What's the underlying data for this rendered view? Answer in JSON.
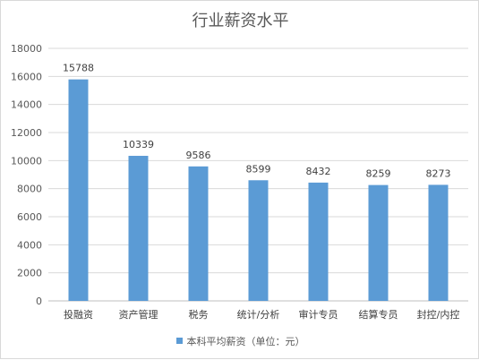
{
  "chart_data": {
    "type": "bar",
    "title": "行业薪资水平",
    "categories": [
      "投融资",
      "资产管理",
      "税务",
      "统计/分析",
      "审计专员",
      "结算专员",
      "封控/内控"
    ],
    "series": [
      {
        "name": "本科平均薪资（单位：元）",
        "values": [
          15788,
          10339,
          9586,
          8599,
          8432,
          8259,
          8273
        ]
      }
    ],
    "ylim": [
      0,
      18000
    ],
    "yticks": [
      0,
      2000,
      4000,
      6000,
      8000,
      10000,
      12000,
      14000,
      16000,
      18000
    ],
    "grid": true,
    "legend_position": "bottom",
    "bar_color": "#5b9bd5",
    "data_labels": true
  }
}
